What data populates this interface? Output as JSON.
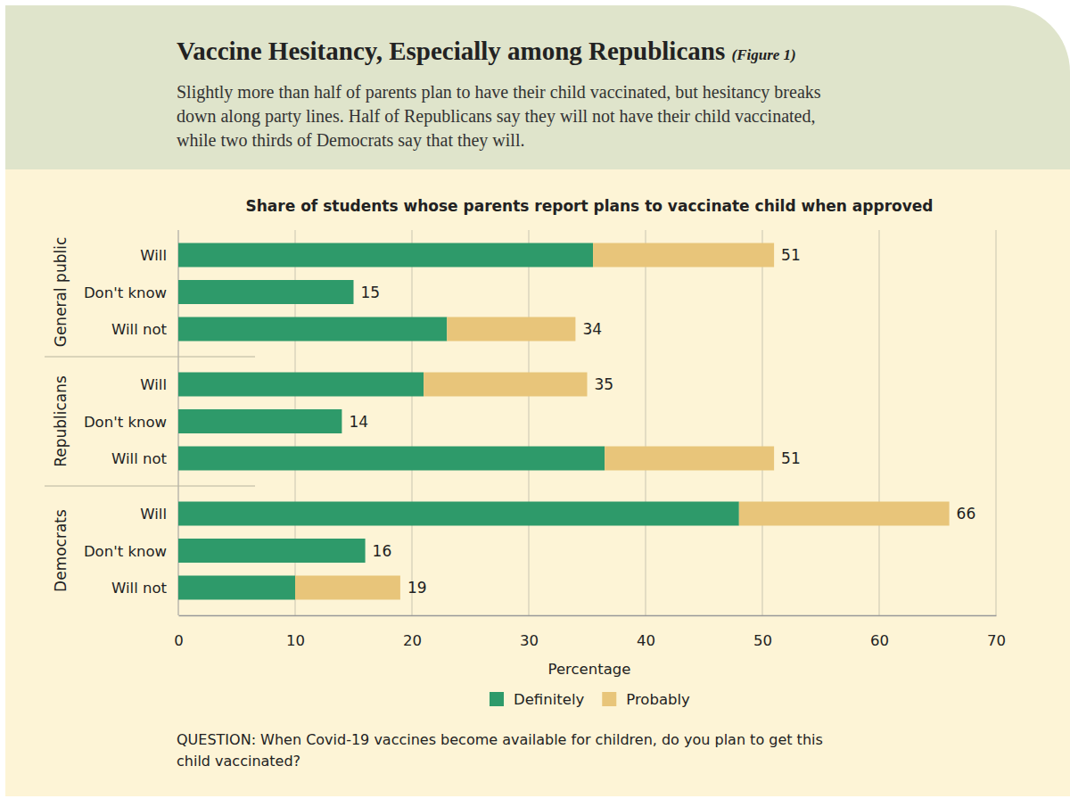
{
  "chart_data": {
    "type": "bar",
    "orientation": "horizontal",
    "stacked": true,
    "title": "Vaccine Hesitancy, Especially among Republicans",
    "figure_label": "(Figure 1)",
    "subtitle": [
      "Slightly more than half of parents plan to have their child vaccinated, but hesitancy breaks",
      "down along party lines. Half of Republicans say they will not have their child vaccinated,",
      "while two thirds of Democrats say that they will."
    ],
    "chart_title": "Share of students whose parents report plans to vaccinate child when approved",
    "groups": [
      "General public",
      "Republicans",
      "Democrats"
    ],
    "categories": [
      "Will",
      "Don't know",
      "Will not",
      "Will",
      "Don't know",
      "Will not",
      "Will",
      "Don't know",
      "Will not"
    ],
    "series": [
      {
        "name": "Definitely",
        "color": "#2e9a6a",
        "values": [
          35.5,
          15,
          23,
          21,
          14,
          36.5,
          48,
          16,
          10
        ]
      },
      {
        "name": "Probably",
        "color": "#e8c57a",
        "values": [
          15.5,
          0,
          11,
          14,
          0,
          14.5,
          18,
          0,
          9
        ]
      }
    ],
    "totals": [
      51,
      15,
      34,
      35,
      14,
      51,
      66,
      16,
      19
    ],
    "xlabel": "Percentage",
    "xlim": [
      0,
      70
    ],
    "xticks": [
      0,
      10,
      20,
      30,
      40,
      50,
      60,
      70
    ],
    "grid": true,
    "legend": "bottom",
    "note": [
      "QUESTION: When Covid-19 vaccines become available for children, do you plan to get this",
      "child vaccinated?"
    ]
  }
}
